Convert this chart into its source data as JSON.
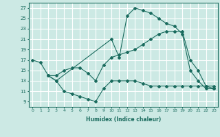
{
  "xlabel": "Humidex (Indice chaleur)",
  "xlim": [
    -0.5,
    23.5
  ],
  "ylim": [
    8,
    28
  ],
  "yticks": [
    9,
    11,
    13,
    15,
    17,
    19,
    21,
    23,
    25,
    27
  ],
  "xticks": [
    0,
    1,
    2,
    3,
    4,
    5,
    6,
    7,
    8,
    9,
    10,
    11,
    12,
    13,
    14,
    15,
    16,
    17,
    18,
    19,
    20,
    21,
    22,
    23
  ],
  "bg_color": "#cce9e4",
  "grid_color": "#ffffff",
  "line_color": "#1a6b5e",
  "lines": [
    {
      "x": [
        0,
        1,
        2,
        3,
        10,
        11,
        12,
        13,
        14,
        15,
        16,
        17,
        18,
        19,
        20,
        21,
        22,
        23
      ],
      "y": [
        17,
        16.5,
        14,
        13,
        21,
        17.5,
        25.5,
        27,
        26.5,
        26,
        25,
        24,
        23.5,
        22,
        15,
        13,
        11.5,
        11.5
      ]
    },
    {
      "x": [
        2,
        3,
        4,
        5,
        6,
        7,
        8,
        9,
        10,
        11,
        12,
        13,
        14,
        15,
        16,
        17,
        18,
        19,
        20,
        21,
        22,
        23
      ],
      "y": [
        14,
        14,
        15,
        15.5,
        15.5,
        14.5,
        13,
        16,
        17.5,
        18,
        18.5,
        19,
        20,
        21,
        22,
        22.5,
        22.5,
        22.5,
        17,
        15,
        12,
        12
      ]
    },
    {
      "x": [
        2,
        3,
        4,
        5,
        6,
        7,
        8,
        9,
        10,
        11,
        12,
        13,
        14,
        15,
        16,
        17,
        18,
        19,
        20,
        21,
        22,
        23
      ],
      "y": [
        14,
        13,
        11,
        10.5,
        10,
        9.5,
        9,
        11.5,
        13,
        13,
        13,
        13,
        12.5,
        12,
        12,
        12,
        12,
        12,
        12,
        12,
        12,
        11.5
      ]
    }
  ]
}
